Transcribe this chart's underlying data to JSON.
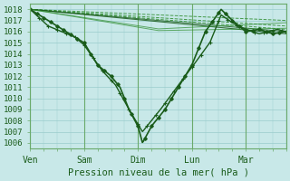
{
  "bg_color": "#c8e8e8",
  "grid_color": "#99cccc",
  "line_color_dark": "#1a5c1a",
  "line_color_mid": "#2d8c2d",
  "xlabel": "Pression niveau de la mer( hPa )",
  "ylim": [
    1005.5,
    1018.5
  ],
  "yticks": [
    1006,
    1007,
    1008,
    1009,
    1010,
    1011,
    1012,
    1013,
    1014,
    1015,
    1016,
    1017,
    1018
  ],
  "xtick_labels": [
    "Ven",
    "Sam",
    "Dim",
    "Lun",
    "Mar"
  ],
  "xtick_positions": [
    0,
    24,
    48,
    72,
    96
  ],
  "xlim": [
    0,
    114
  ],
  "title": ""
}
